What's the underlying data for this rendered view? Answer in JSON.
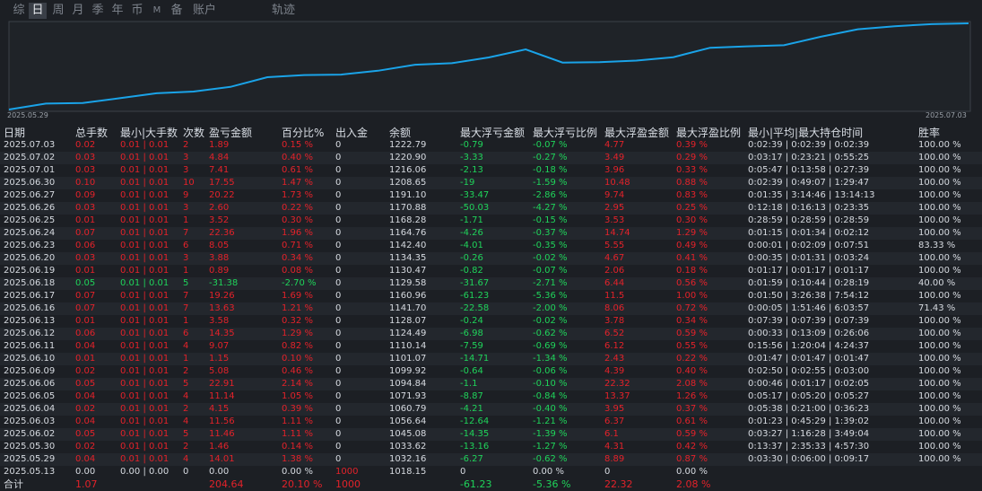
{
  "tabs": [
    {
      "label": "综",
      "active": false
    },
    {
      "label": "日",
      "active": true
    },
    {
      "label": "周",
      "active": false
    },
    {
      "label": "月",
      "active": false
    },
    {
      "label": "季",
      "active": false
    },
    {
      "label": "年",
      "active": false
    },
    {
      "label": "币",
      "active": false
    },
    {
      "label": "M",
      "active": false
    },
    {
      "label": "备",
      "active": false
    },
    {
      "label": "账户",
      "active": false
    },
    {
      "label": "轨迹",
      "active": false
    }
  ],
  "chart_data": {
    "type": "line",
    "x_start": "2025.05.29",
    "x_end": "2025.07.03",
    "x": [
      "2025.05.13",
      "2025.05.29",
      "2025.05.30",
      "2025.06.02",
      "2025.06.03",
      "2025.06.04",
      "2025.06.05",
      "2025.06.06",
      "2025.06.09",
      "2025.06.10",
      "2025.06.11",
      "2025.06.12",
      "2025.06.13",
      "2025.06.16",
      "2025.06.17",
      "2025.06.18",
      "2025.06.19",
      "2025.06.20",
      "2025.06.23",
      "2025.06.24",
      "2025.06.25",
      "2025.06.26",
      "2025.06.27",
      "2025.06.30",
      "2025.07.01",
      "2025.07.02",
      "2025.07.03"
    ],
    "values": [
      1018.15,
      1032.16,
      1033.62,
      1045.08,
      1056.64,
      1060.79,
      1071.93,
      1094.84,
      1099.92,
      1101.07,
      1110.14,
      1124.49,
      1128.07,
      1141.7,
      1160.96,
      1129.58,
      1130.47,
      1134.35,
      1142.4,
      1164.76,
      1168.28,
      1170.88,
      1191.1,
      1208.65,
      1216.06,
      1220.9,
      1222.79
    ],
    "line_color": "#1aa3e8"
  },
  "table": {
    "headers": [
      "日期",
      "总手数",
      "最小|大手数",
      "次数",
      "盈亏金额",
      "百分比%",
      "出入金",
      "余额",
      "最大浮亏金额",
      "最大浮亏比例",
      "最大浮盈金额",
      "最大浮盈比例",
      "最小|平均|最大持仓时间",
      "胜率"
    ],
    "rows": [
      {
        "date": "2025.07.03",
        "lots": "0.02",
        "minmax": "0.01 | 0.01",
        "count": "2",
        "pnl": "1.89",
        "pct": "0.15 %",
        "io": "0",
        "bal": "1222.79",
        "mdd": "-0.79",
        "mddp": "-0.07 %",
        "mfe": "4.77",
        "mfep": "0.39 %",
        "time": "0:02:39 | 0:02:39 | 0:02:39",
        "win": "100.00 %",
        "dir": "pos"
      },
      {
        "date": "2025.07.02",
        "lots": "0.03",
        "minmax": "0.01 | 0.01",
        "count": "3",
        "pnl": "4.84",
        "pct": "0.40 %",
        "io": "0",
        "bal": "1220.90",
        "mdd": "-3.33",
        "mddp": "-0.27 %",
        "mfe": "3.49",
        "mfep": "0.29 %",
        "time": "0:03:17 | 0:23:21 | 0:55:25",
        "win": "100.00 %",
        "dir": "pos"
      },
      {
        "date": "2025.07.01",
        "lots": "0.03",
        "minmax": "0.01 | 0.01",
        "count": "3",
        "pnl": "7.41",
        "pct": "0.61 %",
        "io": "0",
        "bal": "1216.06",
        "mdd": "-2.13",
        "mddp": "-0.18 %",
        "mfe": "3.96",
        "mfep": "0.33 %",
        "time": "0:05:47 | 0:13:58 | 0:27:39",
        "win": "100.00 %",
        "dir": "pos"
      },
      {
        "date": "2025.06.30",
        "lots": "0.10",
        "minmax": "0.01 | 0.01",
        "count": "10",
        "pnl": "17.55",
        "pct": "1.47 %",
        "io": "0",
        "bal": "1208.65",
        "mdd": "-19",
        "mddp": "-1.59 %",
        "mfe": "10.48",
        "mfep": "0.88 %",
        "time": "0:02:39 | 0:49:07 | 1:29:47",
        "win": "100.00 %",
        "dir": "pos"
      },
      {
        "date": "2025.06.27",
        "lots": "0.09",
        "minmax": "0.01 | 0.01",
        "count": "9",
        "pnl": "20.22",
        "pct": "1.73 %",
        "io": "0",
        "bal": "1191.10",
        "mdd": "-33.47",
        "mddp": "-2.86 %",
        "mfe": "9.74",
        "mfep": "0.83 %",
        "time": "0:01:35 | 3:14:46 | 13:14:13",
        "win": "100.00 %",
        "dir": "pos"
      },
      {
        "date": "2025.06.26",
        "lots": "0.03",
        "minmax": "0.01 | 0.01",
        "count": "3",
        "pnl": "2.60",
        "pct": "0.22 %",
        "io": "0",
        "bal": "1170.88",
        "mdd": "-50.03",
        "mddp": "-4.27 %",
        "mfe": "2.95",
        "mfep": "0.25 %",
        "time": "0:12:18 | 0:16:13 | 0:23:35",
        "win": "100.00 %",
        "dir": "pos"
      },
      {
        "date": "2025.06.25",
        "lots": "0.01",
        "minmax": "0.01 | 0.01",
        "count": "1",
        "pnl": "3.52",
        "pct": "0.30 %",
        "io": "0",
        "bal": "1168.28",
        "mdd": "-1.71",
        "mddp": "-0.15 %",
        "mfe": "3.53",
        "mfep": "0.30 %",
        "time": "0:28:59 | 0:28:59 | 0:28:59",
        "win": "100.00 %",
        "dir": "pos"
      },
      {
        "date": "2025.06.24",
        "lots": "0.07",
        "minmax": "0.01 | 0.01",
        "count": "7",
        "pnl": "22.36",
        "pct": "1.96 %",
        "io": "0",
        "bal": "1164.76",
        "mdd": "-4.26",
        "mddp": "-0.37 %",
        "mfe": "14.74",
        "mfep": "1.29 %",
        "time": "0:01:15 | 0:01:34 | 0:02:12",
        "win": "100.00 %",
        "dir": "pos"
      },
      {
        "date": "2025.06.23",
        "lots": "0.06",
        "minmax": "0.01 | 0.01",
        "count": "6",
        "pnl": "8.05",
        "pct": "0.71 %",
        "io": "0",
        "bal": "1142.40",
        "mdd": "-4.01",
        "mddp": "-0.35 %",
        "mfe": "5.55",
        "mfep": "0.49 %",
        "time": "0:00:01 | 0:02:09 | 0:07:51",
        "win": "83.33 %",
        "dir": "pos"
      },
      {
        "date": "2025.06.20",
        "lots": "0.03",
        "minmax": "0.01 | 0.01",
        "count": "3",
        "pnl": "3.88",
        "pct": "0.34 %",
        "io": "0",
        "bal": "1134.35",
        "mdd": "-0.26",
        "mddp": "-0.02 %",
        "mfe": "4.67",
        "mfep": "0.41 %",
        "time": "0:00:35 | 0:01:31 | 0:03:24",
        "win": "100.00 %",
        "dir": "pos"
      },
      {
        "date": "2025.06.19",
        "lots": "0.01",
        "minmax": "0.01 | 0.01",
        "count": "1",
        "pnl": "0.89",
        "pct": "0.08 %",
        "io": "0",
        "bal": "1130.47",
        "mdd": "-0.82",
        "mddp": "-0.07 %",
        "mfe": "2.06",
        "mfep": "0.18 %",
        "time": "0:01:17 | 0:01:17 | 0:01:17",
        "win": "100.00 %",
        "dir": "pos"
      },
      {
        "date": "2025.06.18",
        "lots": "0.05",
        "minmax": "0.01 | 0.01",
        "count": "5",
        "pnl": "-31.38",
        "pct": "-2.70 %",
        "io": "0",
        "bal": "1129.58",
        "mdd": "-31.67",
        "mddp": "-2.71 %",
        "mfe": "6.44",
        "mfep": "0.56 %",
        "time": "0:01:59 | 0:10:44 | 0:28:19",
        "win": "40.00 %",
        "dir": "neg"
      },
      {
        "date": "2025.06.17",
        "lots": "0.07",
        "minmax": "0.01 | 0.01",
        "count": "7",
        "pnl": "19.26",
        "pct": "1.69 %",
        "io": "0",
        "bal": "1160.96",
        "mdd": "-61.23",
        "mddp": "-5.36 %",
        "mfe": "11.5",
        "mfep": "1.00 %",
        "time": "0:01:50 | 3:26:38 | 7:54:12",
        "win": "100.00 %",
        "dir": "pos"
      },
      {
        "date": "2025.06.16",
        "lots": "0.07",
        "minmax": "0.01 | 0.01",
        "count": "7",
        "pnl": "13.63",
        "pct": "1.21 %",
        "io": "0",
        "bal": "1141.70",
        "mdd": "-22.58",
        "mddp": "-2.00 %",
        "mfe": "8.06",
        "mfep": "0.72 %",
        "time": "0:00:05 | 1:51:46 | 6:03:57",
        "win": "71.43 %",
        "dir": "pos"
      },
      {
        "date": "2025.06.13",
        "lots": "0.01",
        "minmax": "0.01 | 0.01",
        "count": "1",
        "pnl": "3.58",
        "pct": "0.32 %",
        "io": "0",
        "bal": "1128.07",
        "mdd": "-0.24",
        "mddp": "-0.02 %",
        "mfe": "3.78",
        "mfep": "0.34 %",
        "time": "0:07:39 | 0:07:39 | 0:07:39",
        "win": "100.00 %",
        "dir": "pos"
      },
      {
        "date": "2025.06.12",
        "lots": "0.06",
        "minmax": "0.01 | 0.01",
        "count": "6",
        "pnl": "14.35",
        "pct": "1.29 %",
        "io": "0",
        "bal": "1124.49",
        "mdd": "-6.98",
        "mddp": "-0.62 %",
        "mfe": "6.52",
        "mfep": "0.59 %",
        "time": "0:00:33 | 0:13:09 | 0:26:06",
        "win": "100.00 %",
        "dir": "pos"
      },
      {
        "date": "2025.06.11",
        "lots": "0.04",
        "minmax": "0.01 | 0.01",
        "count": "4",
        "pnl": "9.07",
        "pct": "0.82 %",
        "io": "0",
        "bal": "1110.14",
        "mdd": "-7.59",
        "mddp": "-0.69 %",
        "mfe": "6.12",
        "mfep": "0.55 %",
        "time": "0:15:56 | 1:20:04 | 4:24:37",
        "win": "100.00 %",
        "dir": "pos"
      },
      {
        "date": "2025.06.10",
        "lots": "0.01",
        "minmax": "0.01 | 0.01",
        "count": "1",
        "pnl": "1.15",
        "pct": "0.10 %",
        "io": "0",
        "bal": "1101.07",
        "mdd": "-14.71",
        "mddp": "-1.34 %",
        "mfe": "2.43",
        "mfep": "0.22 %",
        "time": "0:01:47 | 0:01:47 | 0:01:47",
        "win": "100.00 %",
        "dir": "pos"
      },
      {
        "date": "2025.06.09",
        "lots": "0.02",
        "minmax": "0.01 | 0.01",
        "count": "2",
        "pnl": "5.08",
        "pct": "0.46 %",
        "io": "0",
        "bal": "1099.92",
        "mdd": "-0.64",
        "mddp": "-0.06 %",
        "mfe": "4.39",
        "mfep": "0.40 %",
        "time": "0:02:50 | 0:02:55 | 0:03:00",
        "win": "100.00 %",
        "dir": "pos"
      },
      {
        "date": "2025.06.06",
        "lots": "0.05",
        "minmax": "0.01 | 0.01",
        "count": "5",
        "pnl": "22.91",
        "pct": "2.14 %",
        "io": "0",
        "bal": "1094.84",
        "mdd": "-1.1",
        "mddp": "-0.10 %",
        "mfe": "22.32",
        "mfep": "2.08 %",
        "time": "0:00:46 | 0:01:17 | 0:02:05",
        "win": "100.00 %",
        "dir": "pos"
      },
      {
        "date": "2025.06.05",
        "lots": "0.04",
        "minmax": "0.01 | 0.01",
        "count": "4",
        "pnl": "11.14",
        "pct": "1.05 %",
        "io": "0",
        "bal": "1071.93",
        "mdd": "-8.87",
        "mddp": "-0.84 %",
        "mfe": "13.37",
        "mfep": "1.26 %",
        "time": "0:05:17 | 0:05:20 | 0:05:27",
        "win": "100.00 %",
        "dir": "pos"
      },
      {
        "date": "2025.06.04",
        "lots": "0.02",
        "minmax": "0.01 | 0.01",
        "count": "2",
        "pnl": "4.15",
        "pct": "0.39 %",
        "io": "0",
        "bal": "1060.79",
        "mdd": "-4.21",
        "mddp": "-0.40 %",
        "mfe": "3.95",
        "mfep": "0.37 %",
        "time": "0:05:38 | 0:21:00 | 0:36:23",
        "win": "100.00 %",
        "dir": "pos"
      },
      {
        "date": "2025.06.03",
        "lots": "0.04",
        "minmax": "0.01 | 0.01",
        "count": "4",
        "pnl": "11.56",
        "pct": "1.11 %",
        "io": "0",
        "bal": "1056.64",
        "mdd": "-12.64",
        "mddp": "-1.21 %",
        "mfe": "6.37",
        "mfep": "0.61 %",
        "time": "0:01:23 | 0:45:29 | 1:39:02",
        "win": "100.00 %",
        "dir": "pos"
      },
      {
        "date": "2025.06.02",
        "lots": "0.05",
        "minmax": "0.01 | 0.01",
        "count": "5",
        "pnl": "11.46",
        "pct": "1.11 %",
        "io": "0",
        "bal": "1045.08",
        "mdd": "-14.35",
        "mddp": "-1.39 %",
        "mfe": "6.1",
        "mfep": "0.59 %",
        "time": "0:03:27 | 1:16:28 | 3:49:04",
        "win": "100.00 %",
        "dir": "pos"
      },
      {
        "date": "2025.05.30",
        "lots": "0.02",
        "minmax": "0.01 | 0.01",
        "count": "2",
        "pnl": "1.46",
        "pct": "0.14 %",
        "io": "0",
        "bal": "1033.62",
        "mdd": "-13.16",
        "mddp": "-1.27 %",
        "mfe": "4.31",
        "mfep": "0.42 %",
        "time": "0:13:37 | 2:35:33 | 4:57:30",
        "win": "100.00 %",
        "dir": "pos"
      },
      {
        "date": "2025.05.29",
        "lots": "0.04",
        "minmax": "0.01 | 0.01",
        "count": "4",
        "pnl": "14.01",
        "pct": "1.38 %",
        "io": "0",
        "bal": "1032.16",
        "mdd": "-6.27",
        "mddp": "-0.62 %",
        "mfe": "8.89",
        "mfep": "0.87 %",
        "time": "0:03:30 | 0:06:00 | 0:09:17",
        "win": "100.00 %",
        "dir": "pos"
      },
      {
        "date": "2025.05.13",
        "lots": "0.00",
        "minmax": "0.00 | 0.00",
        "count": "0",
        "pnl": "0.00",
        "pct": "0.00 %",
        "io": "1000",
        "bal": "1018.15",
        "mdd": "0",
        "mddp": "0.00 %",
        "mfe": "0",
        "mfep": "0.00 %",
        "time": "",
        "win": "",
        "dir": "neu"
      }
    ],
    "total": {
      "label": "合计",
      "lots": "1.07",
      "pnl": "204.64",
      "pct": "20.10 %",
      "io": "1000",
      "mdd": "-61.23",
      "mddp": "-5.36 %",
      "mfe": "22.32",
      "mfep": "2.08 %"
    }
  }
}
